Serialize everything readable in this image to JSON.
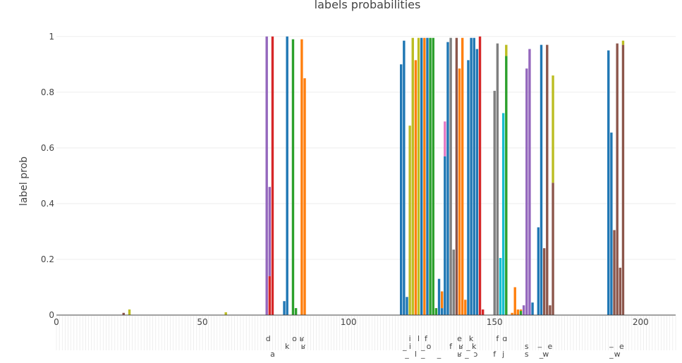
{
  "chart_data": {
    "type": "bar",
    "barmode": "stack",
    "title": "labels probabilities",
    "ylabel": "label prob",
    "xlabel": "",
    "xlim": [
      0,
      212
    ],
    "ylim": [
      0,
      1.05
    ],
    "x_ticks": [
      "0",
      "50",
      "100",
      "150",
      "200"
    ],
    "y_ticks": [
      "0",
      "0.2",
      "0.4",
      "0.6",
      "0.8",
      "1"
    ],
    "grid": true,
    "legend": "none",
    "colors": {
      "blue": "#1f77b4",
      "orange": "#ff7f0e",
      "green": "#2ca02c",
      "red": "#d62728",
      "purple": "#9467bd",
      "brown": "#8c564b",
      "pink": "#e377c2",
      "gray": "#7f7f7f",
      "olive": "#bcbd22",
      "cyan": "#17becf"
    },
    "bars": [
      {
        "x": 23,
        "segments": [
          {
            "c": "brown",
            "v": 0.008
          }
        ]
      },
      {
        "x": 25,
        "segments": [
          {
            "c": "olive",
            "v": 0.02
          }
        ]
      },
      {
        "x": 58,
        "segments": [
          {
            "c": "olive",
            "v": 0.01
          }
        ]
      },
      {
        "x": 72,
        "segments": [
          {
            "c": "purple",
            "v": 1.0
          }
        ]
      },
      {
        "x": 73,
        "segments": [
          {
            "c": "red",
            "v": 0.14
          },
          {
            "c": "purple",
            "v": 0.32
          }
        ]
      },
      {
        "x": 74,
        "segments": [
          {
            "c": "red",
            "v": 1.0
          }
        ]
      },
      {
        "x": 78,
        "segments": [
          {
            "c": "blue",
            "v": 0.05
          }
        ]
      },
      {
        "x": 79,
        "segments": [
          {
            "c": "blue",
            "v": 1.0
          }
        ]
      },
      {
        "x": 81,
        "segments": [
          {
            "c": "green",
            "v": 0.99
          }
        ]
      },
      {
        "x": 82,
        "segments": [
          {
            "c": "green",
            "v": 0.025
          }
        ]
      },
      {
        "x": 84,
        "segments": [
          {
            "c": "orange",
            "v": 0.99
          }
        ]
      },
      {
        "x": 85,
        "segments": [
          {
            "c": "orange",
            "v": 0.85
          }
        ]
      },
      {
        "x": 118,
        "segments": [
          {
            "c": "blue",
            "v": 0.9
          }
        ]
      },
      {
        "x": 119,
        "segments": [
          {
            "c": "blue",
            "v": 0.985
          }
        ]
      },
      {
        "x": 120,
        "segments": [
          {
            "c": "blue",
            "v": 0.065
          }
        ]
      },
      {
        "x": 121,
        "segments": [
          {
            "c": "olive",
            "v": 0.68
          }
        ]
      },
      {
        "x": 122,
        "segments": [
          {
            "c": "olive",
            "v": 0.995
          }
        ]
      },
      {
        "x": 123,
        "segments": [
          {
            "c": "orange",
            "v": 0.915
          }
        ]
      },
      {
        "x": 124,
        "segments": [
          {
            "c": "olive",
            "v": 0.995
          }
        ]
      },
      {
        "x": 125,
        "segments": [
          {
            "c": "blue",
            "v": 0.995
          }
        ]
      },
      {
        "x": 126,
        "segments": [
          {
            "c": "orange",
            "v": 0.995
          }
        ]
      },
      {
        "x": 127,
        "segments": [
          {
            "c": "blue",
            "v": 0.995
          }
        ]
      },
      {
        "x": 128,
        "segments": [
          {
            "c": "green",
            "v": 0.995
          }
        ]
      },
      {
        "x": 129,
        "segments": [
          {
            "c": "green",
            "v": 0.995
          }
        ]
      },
      {
        "x": 130,
        "segments": [
          {
            "c": "green",
            "v": 0.025
          }
        ]
      },
      {
        "x": 131,
        "segments": [
          {
            "c": "blue",
            "v": 0.13
          }
        ]
      },
      {
        "x": 132,
        "segments": [
          {
            "c": "blue",
            "v": 0.025
          },
          {
            "c": "orange",
            "v": 0.06
          }
        ]
      },
      {
        "x": 133,
        "segments": [
          {
            "c": "blue",
            "v": 0.57
          },
          {
            "c": "pink",
            "v": 0.125
          }
        ]
      },
      {
        "x": 134,
        "segments": [
          {
            "c": "blue",
            "v": 0.98
          }
        ]
      },
      {
        "x": 135,
        "segments": [
          {
            "c": "gray",
            "v": 0.995
          }
        ]
      },
      {
        "x": 136,
        "segments": [
          {
            "c": "gray",
            "v": 0.235
          }
        ]
      },
      {
        "x": 137,
        "segments": [
          {
            "c": "brown",
            "v": 0.995
          }
        ]
      },
      {
        "x": 138,
        "segments": [
          {
            "c": "orange",
            "v": 0.885
          }
        ]
      },
      {
        "x": 139,
        "segments": [
          {
            "c": "orange",
            "v": 0.995
          }
        ]
      },
      {
        "x": 140,
        "segments": [
          {
            "c": "orange",
            "v": 0.055
          }
        ]
      },
      {
        "x": 141,
        "segments": [
          {
            "c": "blue",
            "v": 0.915
          }
        ]
      },
      {
        "x": 142,
        "segments": [
          {
            "c": "blue",
            "v": 0.995
          }
        ]
      },
      {
        "x": 143,
        "segments": [
          {
            "c": "blue",
            "v": 0.995
          }
        ]
      },
      {
        "x": 144,
        "segments": [
          {
            "c": "blue",
            "v": 0.955
          }
        ]
      },
      {
        "x": 145,
        "segments": [
          {
            "c": "red",
            "v": 1.0
          }
        ]
      },
      {
        "x": 146,
        "segments": [
          {
            "c": "red",
            "v": 0.02
          }
        ]
      },
      {
        "x": 150,
        "segments": [
          {
            "c": "gray",
            "v": 0.805
          }
        ]
      },
      {
        "x": 151,
        "segments": [
          {
            "c": "gray",
            "v": 0.975
          }
        ]
      },
      {
        "x": 152,
        "segments": [
          {
            "c": "cyan",
            "v": 0.205
          }
        ]
      },
      {
        "x": 153,
        "segments": [
          {
            "c": "cyan",
            "v": 0.725
          }
        ]
      },
      {
        "x": 154,
        "segments": [
          {
            "c": "green",
            "v": 0.93
          },
          {
            "c": "olive",
            "v": 0.04
          }
        ]
      },
      {
        "x": 156,
        "segments": [
          {
            "c": "orange",
            "v": 0.008
          }
        ]
      },
      {
        "x": 157,
        "segments": [
          {
            "c": "orange",
            "v": 0.1
          }
        ]
      },
      {
        "x": 158,
        "segments": [
          {
            "c": "orange",
            "v": 0.02
          }
        ]
      },
      {
        "x": 159,
        "segments": [
          {
            "c": "green",
            "v": 0.015
          },
          {
            "c": "orange",
            "v": 0.005
          }
        ]
      },
      {
        "x": 160,
        "segments": [
          {
            "c": "purple",
            "v": 0.035
          }
        ]
      },
      {
        "x": 161,
        "segments": [
          {
            "c": "purple",
            "v": 0.885
          }
        ]
      },
      {
        "x": 162,
        "segments": [
          {
            "c": "purple",
            "v": 0.955
          }
        ]
      },
      {
        "x": 163,
        "segments": [
          {
            "c": "blue",
            "v": 0.045
          }
        ]
      },
      {
        "x": 165,
        "segments": [
          {
            "c": "blue",
            "v": 0.315
          }
        ]
      },
      {
        "x": 166,
        "segments": [
          {
            "c": "blue",
            "v": 0.97
          }
        ]
      },
      {
        "x": 167,
        "segments": [
          {
            "c": "brown",
            "v": 0.24
          }
        ]
      },
      {
        "x": 168,
        "segments": [
          {
            "c": "brown",
            "v": 0.97
          }
        ]
      },
      {
        "x": 169,
        "segments": [
          {
            "c": "brown",
            "v": 0.035
          }
        ]
      },
      {
        "x": 170,
        "segments": [
          {
            "c": "brown",
            "v": 0.475
          },
          {
            "c": "olive",
            "v": 0.385
          }
        ]
      },
      {
        "x": 189,
        "segments": [
          {
            "c": "blue",
            "v": 0.95
          }
        ]
      },
      {
        "x": 190,
        "segments": [
          {
            "c": "blue",
            "v": 0.655
          }
        ]
      },
      {
        "x": 191,
        "segments": [
          {
            "c": "brown",
            "v": 0.305
          }
        ]
      },
      {
        "x": 192,
        "segments": [
          {
            "c": "brown",
            "v": 0.975
          }
        ]
      },
      {
        "x": 193,
        "segments": [
          {
            "c": "brown",
            "v": 0.17
          }
        ]
      },
      {
        "x": 194,
        "segments": [
          {
            "c": "brown",
            "v": 0.97
          },
          {
            "c": "olive",
            "v": 0.015
          }
        ]
      }
    ],
    "category_labels": [
      {
        "x": 72.5,
        "row": 1,
        "text": "d"
      },
      {
        "x": 74,
        "row": 3,
        "text": "a"
      },
      {
        "x": 79,
        "row": 2,
        "text": "k"
      },
      {
        "x": 81.5,
        "row": 1,
        "text": "o"
      },
      {
        "x": 84,
        "row": 1,
        "text": "ʁ"
      },
      {
        "x": 84.5,
        "row": 2,
        "text": "ʁ"
      },
      {
        "x": 121,
        "row": 1,
        "text": "i"
      },
      {
        "x": 124,
        "row": 1,
        "text": "l"
      },
      {
        "x": 126.5,
        "row": 1,
        "text": "f"
      },
      {
        "x": 120,
        "row": 2,
        "text": "_ i"
      },
      {
        "x": 125.5,
        "row": 2,
        "text": "_"
      },
      {
        "x": 127.5,
        "row": 2,
        "text": "o"
      },
      {
        "x": 120,
        "row": 3,
        "text": "_"
      },
      {
        "x": 123,
        "row": 3,
        "text": "l"
      },
      {
        "x": 125.5,
        "row": 3,
        "text": "_"
      },
      {
        "x": 131,
        "row": 3,
        "text": "_"
      },
      {
        "x": 135,
        "row": 2,
        "text": "f"
      },
      {
        "x": 138,
        "row": 1,
        "text": "e"
      },
      {
        "x": 138.5,
        "row": 2,
        "text": "ʁ"
      },
      {
        "x": 141,
        "row": 2,
        "text": "_"
      },
      {
        "x": 138,
        "row": 3,
        "text": "ʁ"
      },
      {
        "x": 140.5,
        "row": 3,
        "text": "_"
      },
      {
        "x": 142,
        "row": 1,
        "text": "k"
      },
      {
        "x": 143,
        "row": 2,
        "text": "k"
      },
      {
        "x": 143.5,
        "row": 3,
        "text": "ɔ"
      },
      {
        "x": 151,
        "row": 1,
        "text": "f"
      },
      {
        "x": 153.5,
        "row": 1,
        "text": "ɑ"
      },
      {
        "x": 150,
        "row": 3,
        "text": "f"
      },
      {
        "x": 153,
        "row": 3,
        "text": "j"
      },
      {
        "x": 161,
        "row": 2,
        "text": "s"
      },
      {
        "x": 161,
        "row": 3,
        "text": "s"
      },
      {
        "x": 165.5,
        "row": 1.6,
        "text": "_"
      },
      {
        "x": 169,
        "row": 2,
        "text": "e"
      },
      {
        "x": 166,
        "row": 3,
        "text": "_"
      },
      {
        "x": 167.5,
        "row": 3,
        "text": "w"
      },
      {
        "x": 190,
        "row": 1.6,
        "text": "_"
      },
      {
        "x": 193.5,
        "row": 2,
        "text": "e"
      },
      {
        "x": 190,
        "row": 3,
        "text": "_"
      },
      {
        "x": 192,
        "row": 3,
        "text": "w"
      }
    ]
  }
}
